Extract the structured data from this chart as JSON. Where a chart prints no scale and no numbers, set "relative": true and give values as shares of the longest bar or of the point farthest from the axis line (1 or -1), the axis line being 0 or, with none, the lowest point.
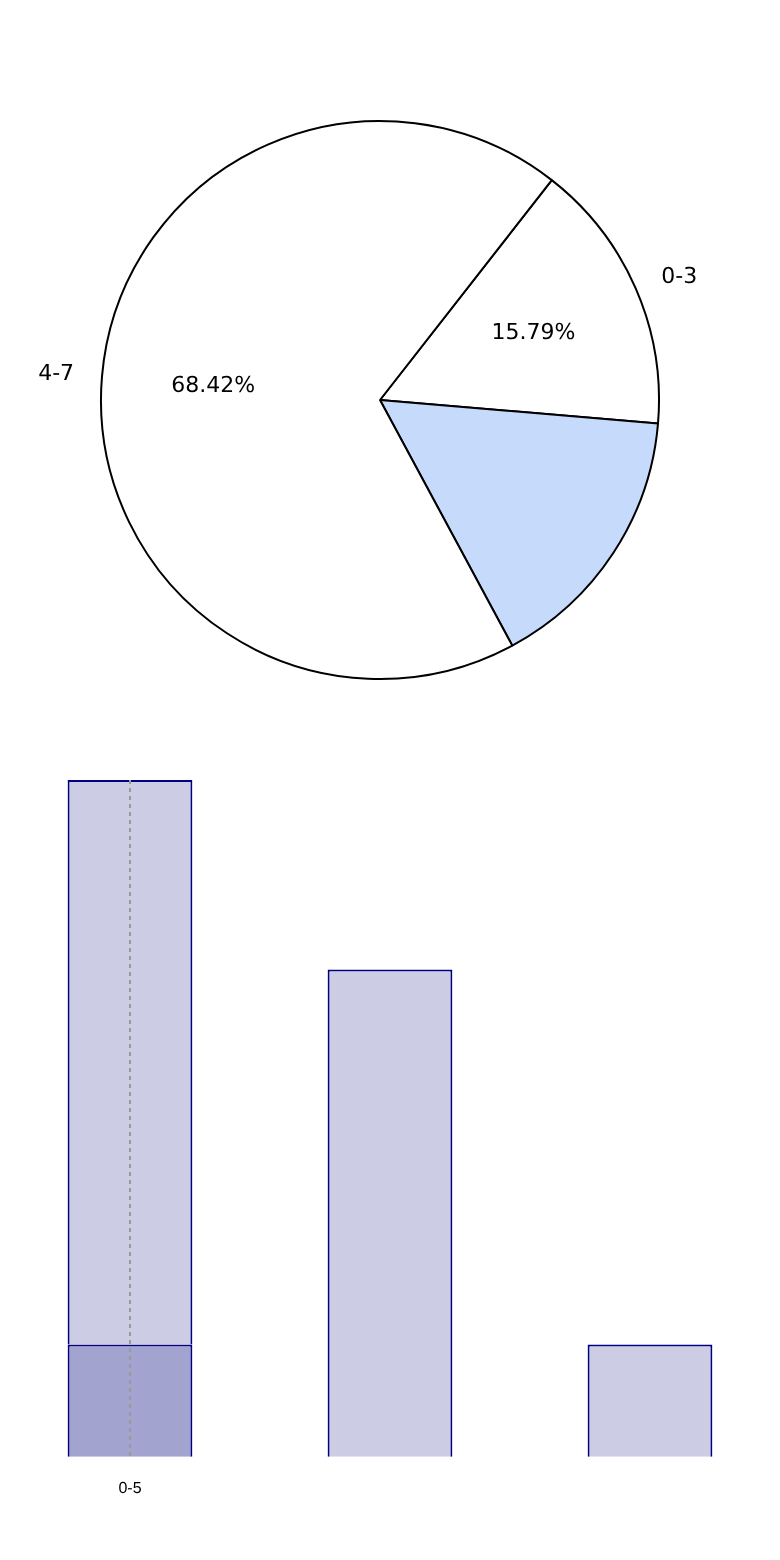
{
  "chart_data": [
    {
      "type": "pie",
      "categories": [
        "0-3",
        null,
        "4-7"
      ],
      "values": [
        15.79,
        15.79,
        68.42
      ],
      "colors": [
        "#ffffff",
        "#c6dafc",
        "#ffffff"
      ],
      "value_labels": [
        "15.79%",
        null,
        "68.42%"
      ],
      "legend": false
    },
    {
      "type": "bar",
      "categories": [
        "0-5",
        null,
        null
      ],
      "stacked": true,
      "relative": true,
      "tick_labels": "x",
      "legend": false,
      "series": [
        {
          "color": "#a3a3d0",
          "values": [
            0.166,
            null,
            null
          ]
        },
        {
          "color": "#cccce4",
          "values": [
            0.834,
            0.72,
            0.166
          ]
        }
      ],
      "ref_lines": [
        {
          "axis": "x",
          "value": "0-5",
          "color": "#999999",
          "line_style": "dotted"
        }
      ]
    }
  ]
}
